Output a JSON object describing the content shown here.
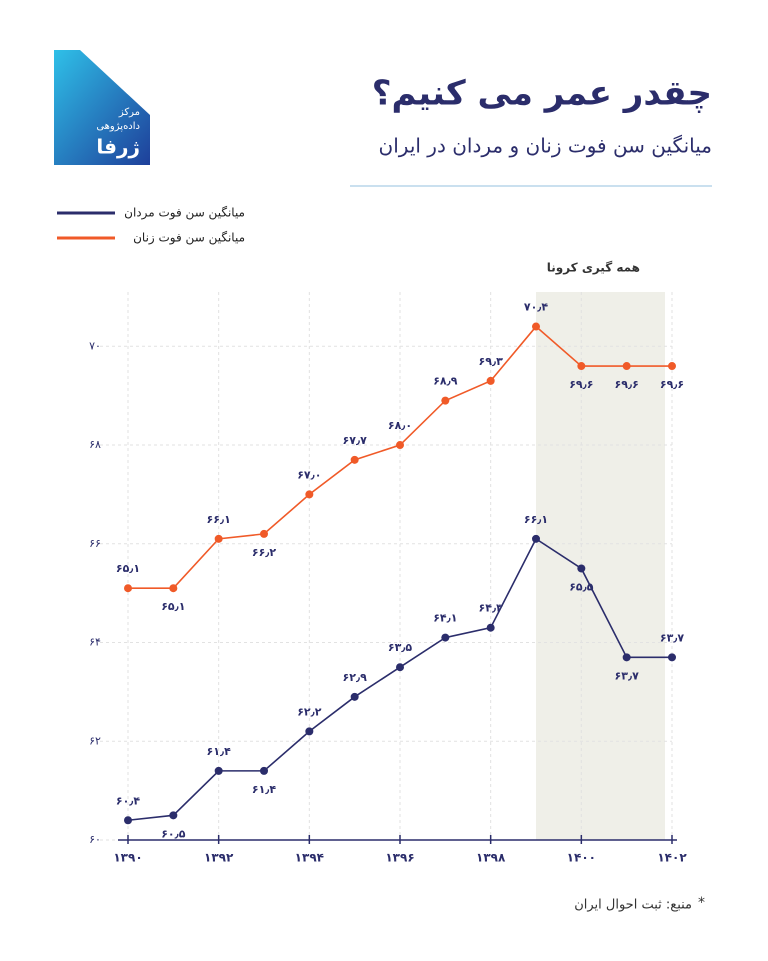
{
  "logo": {
    "line1": "مرکز",
    "line2": "داده‌پژوهی",
    "name": "ژرفا"
  },
  "chart_data": {
    "type": "line",
    "title": "چقدر عمر می کنیم؟",
    "subtitle": "میانگین سن فوت زنان و مردان در ایران",
    "x": [
      1390,
      1391,
      1392,
      1393,
      1394,
      1395,
      1396,
      1397,
      1398,
      1399,
      1400,
      1401,
      1402
    ],
    "series": [
      {
        "name": "میانگین سن فوت مردان",
        "color": "#2b2d6b",
        "values": [
          60.4,
          60.5,
          61.4,
          61.4,
          62.2,
          62.9,
          63.5,
          64.1,
          64.3,
          66.1,
          65.5,
          63.7,
          63.7
        ],
        "value_labels": [
          "۶۰٫۴",
          "۶۰٫۵",
          "۶۱٫۴",
          "۶۱٫۴",
          "۶۲٫۲",
          "۶۲٫۹",
          "۶۳٫۵",
          "۶۴٫۱",
          "۶۴٫۳",
          "۶۶٫۱",
          "۶۵٫۵",
          "۶۳٫۷",
          "۶۳٫۷"
        ]
      },
      {
        "name": "میانگین سن فوت زنان",
        "color": "#f05a28",
        "values": [
          65.1,
          65.1,
          66.1,
          66.2,
          67.0,
          67.7,
          68.0,
          68.9,
          69.3,
          70.4,
          69.6,
          69.6,
          69.6
        ],
        "value_labels": [
          "۶۵٫۱",
          "۶۵٫۱",
          "۶۶٫۱",
          "۶۶٫۲",
          "۶۷٫۰",
          "۶۷٫۷",
          "۶۸٫۰",
          "۶۸٫۹",
          "۶۹٫۳",
          "۷۰٫۴",
          "۶۹٫۶",
          "۶۹٫۶",
          "۶۹٫۶"
        ]
      }
    ],
    "xlim": [
      1390,
      1402
    ],
    "xticks": [
      {
        "value": 1390,
        "label": "۱۳۹۰"
      },
      {
        "value": 1392,
        "label": "۱۳۹۲"
      },
      {
        "value": 1394,
        "label": "۱۳۹۴"
      },
      {
        "value": 1396,
        "label": "۱۳۹۶"
      },
      {
        "value": 1398,
        "label": "۱۳۹۸"
      },
      {
        "value": 1400,
        "label": "۱۴۰۰"
      },
      {
        "value": 1402,
        "label": "۱۴۰۲"
      }
    ],
    "ylim": [
      60,
      71.1
    ],
    "yticks": [
      {
        "value": 60,
        "label": "۶۰"
      },
      {
        "value": 62,
        "label": "۶۲"
      },
      {
        "value": 64,
        "label": "۶۴"
      },
      {
        "value": 66,
        "label": "۶۶"
      },
      {
        "value": 68,
        "label": "۶۸"
      },
      {
        "value": 70,
        "label": "۷۰"
      }
    ],
    "grid": true,
    "shaded_region": {
      "label": "همه گیری کرونا",
      "from": 1399,
      "to": 1402
    },
    "source_marker": "*",
    "source": "منبع: ثبت احوال ایران"
  }
}
